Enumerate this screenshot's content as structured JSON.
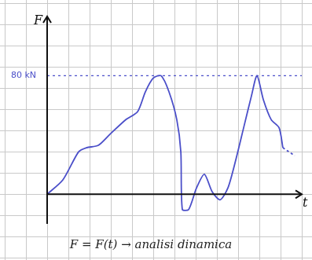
{
  "chart_data": {
    "type": "line",
    "title": "F = F(t) → analisi dinamica",
    "x_label": "t",
    "y_label": "F",
    "x": [
      0,
      0.74,
      1.48,
      1.85,
      2.41,
      2.96,
      3.7,
      4.26,
      4.63,
      5.0,
      5.37,
      5.74,
      6.11,
      6.3,
      6.37,
      6.67,
      7.04,
      7.41,
      7.78,
      8.15,
      8.52,
      8.89,
      9.26,
      9.63,
      9.89,
      10.19,
      10.56,
      10.93,
      11.11,
      11.67
    ],
    "series": [
      {
        "color": "#4b4fc9",
        "line_style": "solid",
        "values": [
          0,
          9.7,
          28.6,
          31.4,
          33,
          40.5,
          50.3,
          55.7,
          69.2,
          78.4,
          80,
          69.2,
          50.3,
          28.6,
          -10.3,
          -10.3,
          4.3,
          13.5,
          1.6,
          -3.8,
          4.3,
          23.2,
          44.9,
          66.5,
          80,
          63.8,
          50.3,
          44.9,
          31.4,
          null
        ]
      },
      {
        "color": "#4b4fc9",
        "line_style": "dashed",
        "values": [
          null,
          null,
          null,
          null,
          null,
          null,
          null,
          null,
          null,
          null,
          null,
          null,
          null,
          null,
          null,
          null,
          null,
          null,
          null,
          null,
          null,
          null,
          null,
          null,
          null,
          null,
          null,
          null,
          31.4,
          26
        ]
      }
    ],
    "xlim": [
      0,
      12
    ],
    "xticks": [],
    "ylim": [
      -20,
      120
    ],
    "yticks": [
      {
        "value": 80,
        "label": "80 kN"
      }
    ],
    "grid": true,
    "tick_labels": "y"
  }
}
